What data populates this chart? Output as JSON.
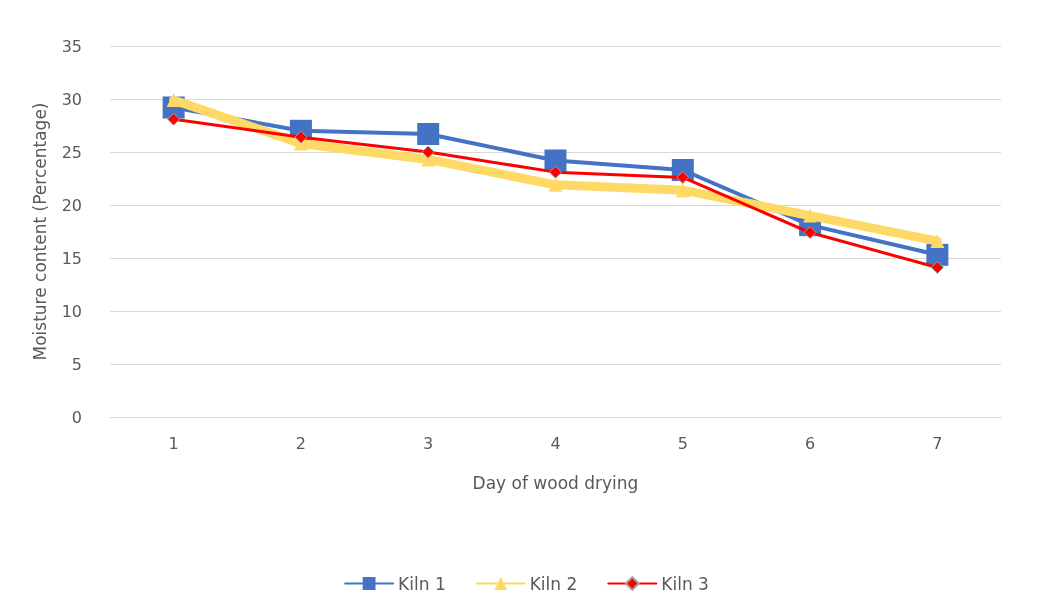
{
  "chart_data": {
    "type": "line",
    "xlabel": "Day of wood drying",
    "ylabel": "Moisture content (Percentage)",
    "categories": [
      "1",
      "2",
      "3",
      "4",
      "5",
      "6",
      "7"
    ],
    "series": [
      {
        "name": "Kiln 1",
        "color": "#4472c4",
        "marker": "square",
        "values": [
          29.2,
          27.0,
          26.7,
          24.2,
          23.3,
          18.1,
          15.3
        ]
      },
      {
        "name": "Kiln 2",
        "color": "#ffd966",
        "marker": "triangle",
        "values": [
          29.9,
          25.8,
          24.3,
          21.9,
          21.4,
          19.0,
          16.6
        ]
      },
      {
        "name": "Kiln 3",
        "color": "#ff0000",
        "marker": "diamond",
        "values": [
          28.1,
          26.4,
          25.0,
          23.1,
          22.6,
          17.4,
          14.1
        ]
      }
    ],
    "ylim": [
      0,
      35
    ],
    "yticks": [
      0,
      5,
      10,
      15,
      20,
      25,
      30,
      35
    ],
    "grid": "y",
    "legend": "bottom"
  }
}
